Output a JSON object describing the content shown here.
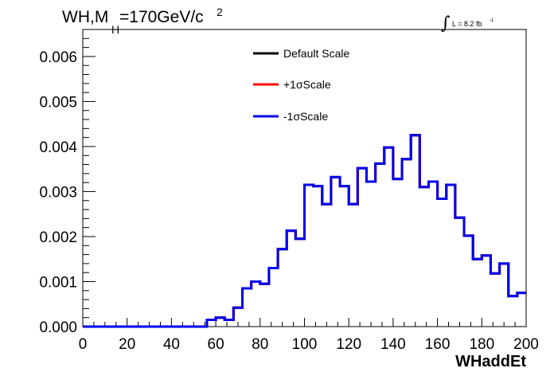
{
  "chart_data": {
    "type": "line",
    "title_main": "WH,M",
    "title_sub": "H",
    "title_rest": "=170GeV/c",
    "title_sup": "2",
    "lumi_symbol": "∫",
    "lumi_text": "L = 8.2 fb",
    "lumi_sup": "-1",
    "xlabel": "WHaddEt",
    "ylabel": "",
    "xlim": [
      0,
      200
    ],
    "ylim": [
      0,
      0.0066
    ],
    "x_ticks": [
      "0",
      "20",
      "40",
      "60",
      "80",
      "100",
      "120",
      "140",
      "160",
      "180",
      "200"
    ],
    "y_ticks": [
      "0.000",
      "0.001",
      "0.002",
      "0.003",
      "0.004",
      "0.005",
      "0.006"
    ],
    "bin_width": 4,
    "x": [
      0,
      4,
      8,
      12,
      16,
      20,
      24,
      28,
      32,
      36,
      40,
      44,
      48,
      52,
      56,
      60,
      64,
      68,
      72,
      76,
      80,
      84,
      88,
      92,
      96,
      100,
      104,
      108,
      112,
      116,
      120,
      124,
      128,
      132,
      136,
      140,
      144,
      148,
      152,
      156,
      160,
      164,
      168,
      172,
      176,
      180,
      184,
      188,
      192,
      196
    ],
    "series": [
      {
        "name": "Default Scale",
        "color": "#000000",
        "values": [
          0,
          0,
          0,
          0,
          0,
          0,
          0,
          0,
          0,
          0,
          0,
          0,
          0,
          0,
          0.00015,
          0.0002,
          0.00015,
          0.00042,
          0.00085,
          0.001,
          0.00095,
          0.0013,
          0.00172,
          0.00213,
          0.00195,
          0.00315,
          0.00312,
          0.00272,
          0.00332,
          0.00312,
          0.00272,
          0.00352,
          0.00322,
          0.00362,
          0.00398,
          0.00328,
          0.00372,
          0.00425,
          0.0031,
          0.00322,
          0.00284,
          0.00315,
          0.00242,
          0.00202,
          0.0015,
          0.00158,
          0.00118,
          0.0014,
          0.00068,
          0.00075
        ]
      },
      {
        "name": "+1σScale",
        "color": "#ff0000",
        "values": [
          0,
          0,
          0,
          0,
          0,
          0,
          0,
          0,
          0,
          0,
          0,
          0,
          0,
          0,
          0.00015,
          0.0002,
          0.00015,
          0.00042,
          0.00085,
          0.001,
          0.00095,
          0.0013,
          0.00172,
          0.00213,
          0.00195,
          0.00315,
          0.00312,
          0.00272,
          0.00332,
          0.00312,
          0.00272,
          0.00352,
          0.00322,
          0.00362,
          0.00398,
          0.00328,
          0.00372,
          0.00425,
          0.0031,
          0.00322,
          0.00284,
          0.00315,
          0.00242,
          0.00202,
          0.0015,
          0.00158,
          0.00118,
          0.0014,
          0.00068,
          0.00075
        ]
      },
      {
        "name": "-1σScale",
        "color": "#0000ee",
        "values": [
          0,
          0,
          0,
          0,
          0,
          0,
          0,
          0,
          0,
          0,
          0,
          0,
          0,
          0,
          0.00015,
          0.0002,
          0.00015,
          0.00042,
          0.00085,
          0.001,
          0.00095,
          0.0013,
          0.00172,
          0.00213,
          0.00195,
          0.00315,
          0.00312,
          0.00272,
          0.00332,
          0.00312,
          0.00272,
          0.00352,
          0.00322,
          0.00362,
          0.00398,
          0.00328,
          0.00372,
          0.00425,
          0.0031,
          0.00322,
          0.00284,
          0.00315,
          0.00242,
          0.00202,
          0.0015,
          0.00158,
          0.00118,
          0.0014,
          0.00068,
          0.00075
        ]
      }
    ],
    "legend_position": "top-center",
    "grid": false
  }
}
